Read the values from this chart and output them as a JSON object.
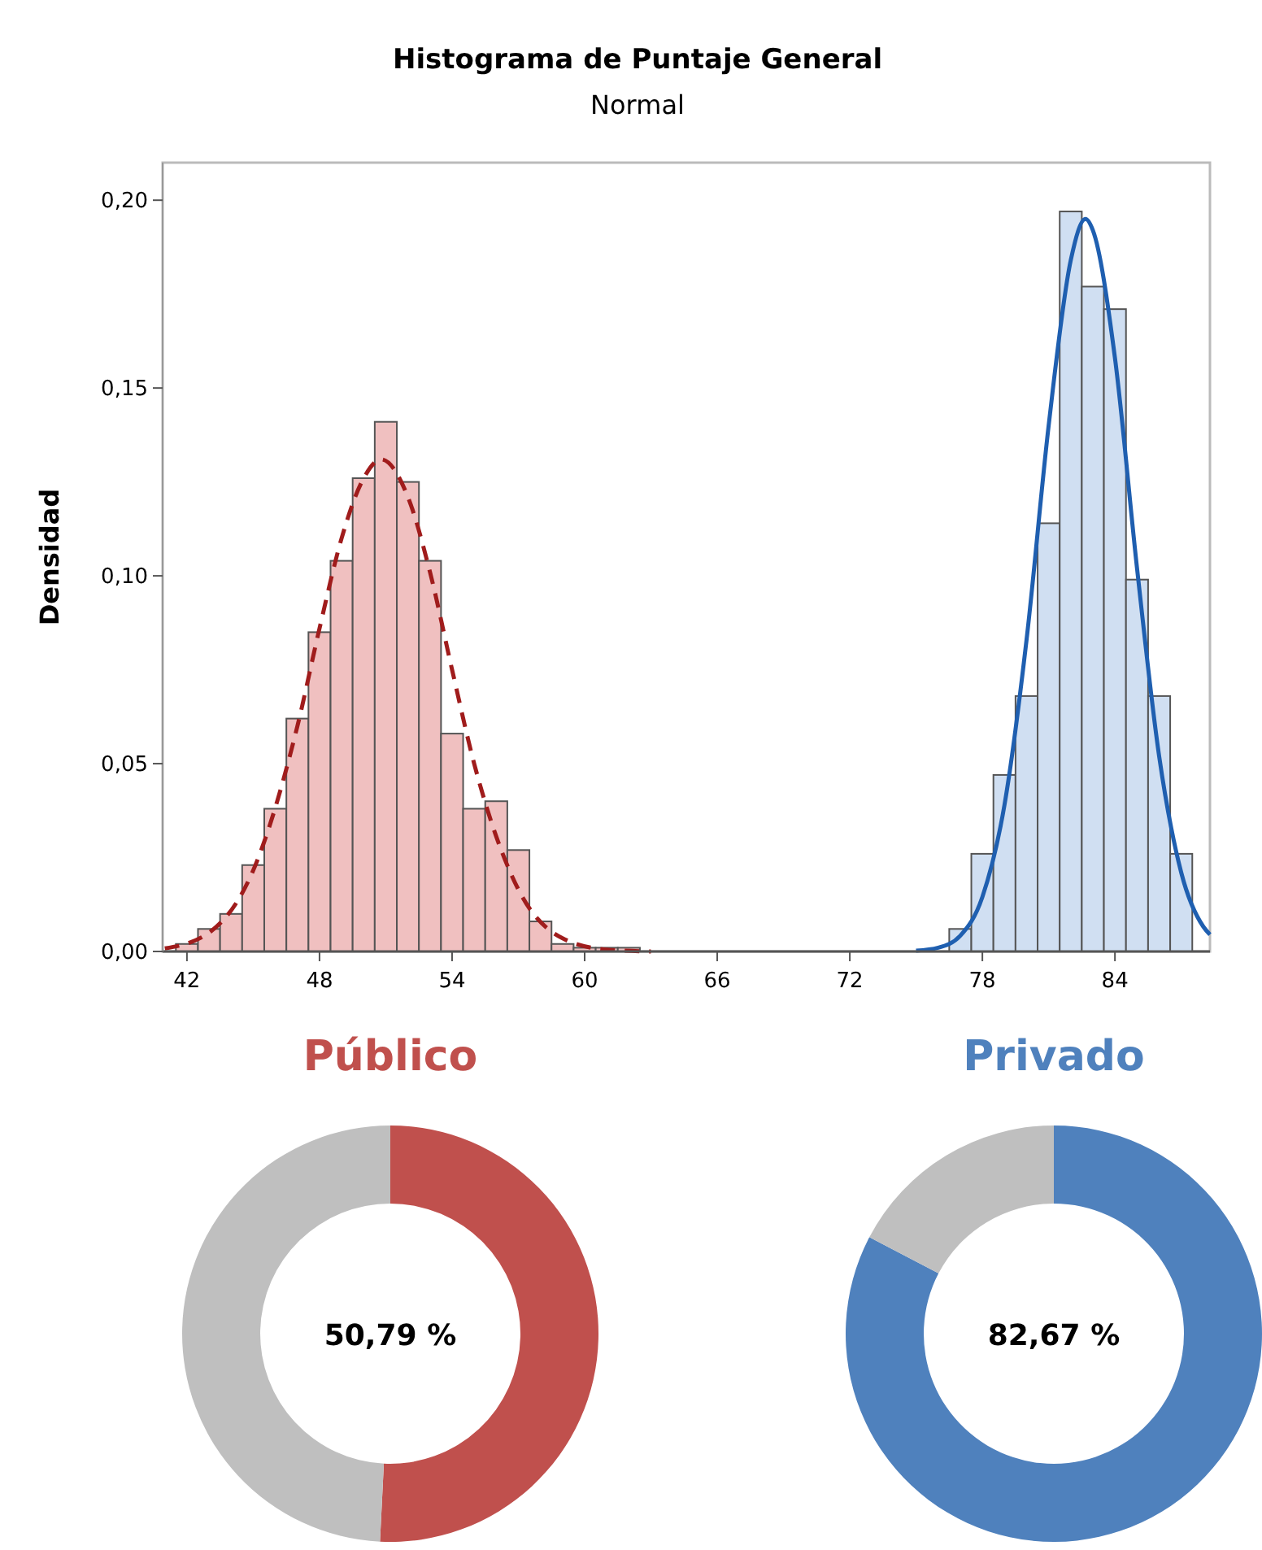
{
  "chart_data": [
    {
      "type": "histogram",
      "title": "Histograma de Puntaje General",
      "subtitle": "Normal",
      "ylabel": "Densidad",
      "xlim": [
        40.9,
        88.3
      ],
      "xticks": [
        42,
        48,
        54,
        60,
        66,
        72,
        78,
        84
      ],
      "ylim": [
        0,
        0.21
      ],
      "yticks": [
        {
          "value": 0,
          "label": "0,00"
        },
        {
          "value": 0.05,
          "label": "0,05"
        },
        {
          "value": 0.1,
          "label": "0,10"
        },
        {
          "value": 0.15,
          "label": "0,15"
        },
        {
          "value": 0.2,
          "label": "0,20"
        }
      ],
      "grid": false,
      "series": [
        {
          "type": "histogram",
          "color": "#f0c0c0",
          "bins": [
            41.5,
            42.5,
            43.5,
            44.5,
            45.5,
            46.5,
            47.5,
            48.5,
            49.5,
            50.5,
            51.5,
            52.5,
            53.5,
            54.5,
            55.5,
            56.5,
            57.5,
            58.5,
            59.5,
            60.5,
            61.5,
            62.5
          ],
          "values": [
            0.002,
            0.006,
            0.01,
            0.023,
            0.038,
            0.062,
            0.085,
            0.104,
            0.126,
            0.141,
            0.125,
            0.104,
            0.058,
            0.038,
            0.04,
            0.027,
            0.008,
            0.002,
            0.001,
            0.001,
            0.001
          ]
        },
        {
          "type": "histogram",
          "color": "#d0dff2",
          "bins": [
            76.5,
            77.5,
            78.5,
            79.5,
            80.5,
            81.5,
            82.5,
            83.5,
            84.5,
            85.5,
            86.5,
            87.5
          ],
          "values": [
            0.006,
            0.026,
            0.047,
            0.068,
            0.114,
            0.197,
            0.177,
            0.171,
            0.099,
            0.068,
            0.026
          ]
        },
        {
          "type": "line",
          "color": "#a01c1c",
          "line_style": "dashed",
          "x": [
            41,
            43,
            45,
            47,
            48,
            49,
            50,
            50.79,
            52,
            53,
            54,
            55,
            57,
            59,
            61,
            63
          ],
          "values": [
            0.0008,
            0.005,
            0.0216,
            0.06,
            0.086,
            0.11,
            0.126,
            0.131,
            0.121,
            0.101,
            0.075,
            0.05,
            0.0165,
            0.0035,
            0.0005,
            0
          ]
        },
        {
          "type": "line",
          "color": "#1f5fb0",
          "line_style": "solid",
          "x": [
            75,
            76,
            77,
            78,
            79,
            80,
            81,
            82,
            82.67,
            83,
            84,
            85,
            86,
            87,
            88,
            88.3
          ],
          "values": [
            0.0002,
            0.001,
            0.0042,
            0.0145,
            0.039,
            0.083,
            0.14,
            0.184,
            0.195,
            0.192,
            0.158,
            0.102,
            0.052,
            0.021,
            0.0066,
            0.0045
          ]
        }
      ]
    },
    {
      "type": "donut",
      "title": "Público",
      "categories": [
        null,
        null
      ],
      "values": [
        50.79,
        49.21
      ],
      "colors": [
        "#c0504d",
        "#bfbfbf"
      ],
      "annotations": [
        "50,79 %"
      ]
    },
    {
      "type": "donut",
      "title": "Privado",
      "categories": [
        null,
        null
      ],
      "values": [
        82.67,
        17.33
      ],
      "colors": [
        "#4f81bd",
        "#bfbfbf"
      ],
      "annotations": [
        "82,67 %"
      ]
    }
  ]
}
